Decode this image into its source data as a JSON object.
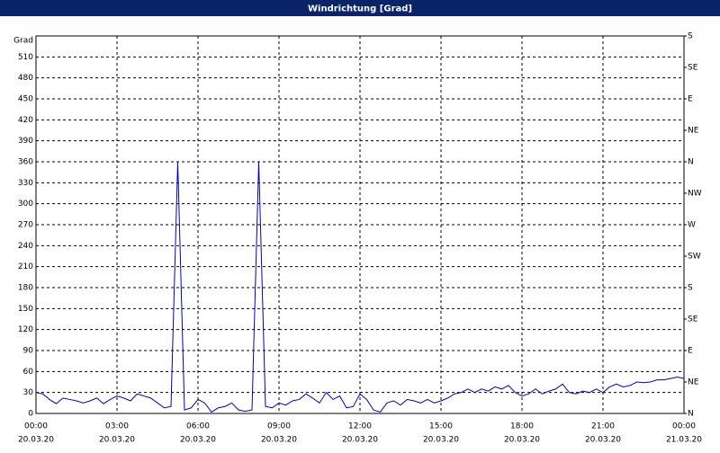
{
  "window": {
    "title": "Windrichtung [Grad]"
  },
  "chart_data": {
    "type": "line",
    "y_unit": "Grad",
    "x": [
      0,
      0.25,
      0.5,
      0.75,
      1,
      1.25,
      1.5,
      1.75,
      2,
      2.25,
      2.5,
      2.75,
      3,
      3.25,
      3.5,
      3.75,
      4,
      4.25,
      4.5,
      4.75,
      5,
      5.25,
      5.5,
      5.75,
      6,
      6.25,
      6.5,
      6.75,
      7,
      7.25,
      7.5,
      7.75,
      8,
      8.25,
      8.5,
      8.75,
      9,
      9.25,
      9.5,
      9.75,
      10,
      10.25,
      10.5,
      10.75,
      11,
      11.25,
      11.5,
      11.75,
      12,
      12.25,
      12.5,
      12.75,
      13,
      13.25,
      13.5,
      13.75,
      14,
      14.25,
      14.5,
      14.75,
      15,
      15.25,
      15.5,
      15.75,
      16,
      16.25,
      16.5,
      16.75,
      17,
      17.25,
      17.5,
      17.75,
      18,
      18.25,
      18.5,
      18.75,
      19,
      19.25,
      19.5,
      19.75,
      20,
      20.25,
      20.5,
      20.75,
      21,
      21.25,
      21.5,
      21.75,
      22,
      22.25,
      22.5,
      22.75,
      23,
      23.25,
      23.5,
      23.75,
      24
    ],
    "series": [
      {
        "name": "Windrichtung",
        "color": "#0000c0",
        "values": [
          30,
          28,
          20,
          14,
          22,
          20,
          18,
          15,
          18,
          22,
          14,
          20,
          25,
          22,
          18,
          28,
          25,
          22,
          15,
          8,
          10,
          360,
          5,
          8,
          20,
          15,
          2,
          8,
          10,
          15,
          5,
          3,
          5,
          360,
          10,
          8,
          15,
          12,
          18,
          20,
          28,
          22,
          15,
          30,
          20,
          25,
          8,
          10,
          28,
          20,
          5,
          2,
          15,
          18,
          12,
          20,
          18,
          15,
          20,
          15,
          18,
          22,
          28,
          30,
          35,
          30,
          35,
          32,
          38,
          35,
          40,
          30,
          25,
          28,
          35,
          28,
          32,
          35,
          42,
          30,
          28,
          32,
          30,
          35,
          30,
          38,
          42,
          38,
          40,
          45,
          44,
          45,
          48,
          48,
          50,
          52,
          50
        ]
      }
    ],
    "xlim": [
      0,
      24
    ],
    "xticks": [
      {
        "value": 0,
        "label": "00:00"
      },
      {
        "value": 3,
        "label": "03:00"
      },
      {
        "value": 6,
        "label": "06:00"
      },
      {
        "value": 9,
        "label": "09:00"
      },
      {
        "value": 12,
        "label": "12:00"
      },
      {
        "value": 15,
        "label": "15:00"
      },
      {
        "value": 18,
        "label": "18:00"
      },
      {
        "value": 21,
        "label": "21:00"
      },
      {
        "value": 24,
        "label": "00:00"
      }
    ],
    "xtick_dates": [
      "20.03.20",
      "20.03.20",
      "20.03.20",
      "20.03.20",
      "20.03.20",
      "20.03.20",
      "20.03.20",
      "20.03.20",
      "21.03.20"
    ],
    "ylim": [
      0,
      540
    ],
    "yticks": [
      0,
      30,
      60,
      90,
      120,
      150,
      180,
      210,
      240,
      270,
      300,
      330,
      360,
      390,
      420,
      450,
      480,
      510
    ],
    "y2lim": [
      0,
      540
    ],
    "y2ticks": [
      {
        "value": 0,
        "label": "N"
      },
      {
        "value": 45,
        "label": "NE"
      },
      {
        "value": 90,
        "label": "E"
      },
      {
        "value": 135,
        "label": "SE"
      },
      {
        "value": 180,
        "label": "S"
      },
      {
        "value": 225,
        "label": "SW"
      },
      {
        "value": 270,
        "label": "W"
      },
      {
        "value": 315,
        "label": "NW"
      },
      {
        "value": 360,
        "label": "N"
      },
      {
        "value": 405,
        "label": "NE"
      },
      {
        "value": 450,
        "label": "E"
      },
      {
        "value": 495,
        "label": "SE"
      },
      {
        "value": 540,
        "label": "S"
      }
    ],
    "grid": true
  }
}
